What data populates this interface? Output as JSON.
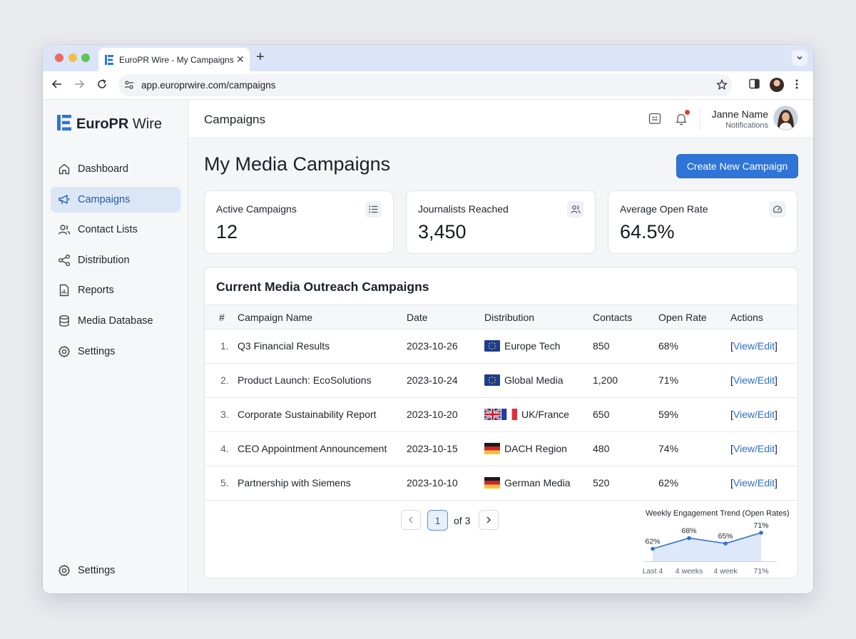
{
  "browser": {
    "tab_title": "EuroPR Wire - My Campaigns",
    "url": "app.europrwire.com/campaigns"
  },
  "brand": {
    "name_bold": "EuroPR",
    "name_light": " Wire",
    "accent": "#2f74d8"
  },
  "sidebar": {
    "items": [
      {
        "label": "Dashboard",
        "icon": "home-icon"
      },
      {
        "label": "Campaigns",
        "icon": "megaphone-icon",
        "active": true
      },
      {
        "label": "Contact Lists",
        "icon": "users-icon"
      },
      {
        "label": "Distribution",
        "icon": "share-icon"
      },
      {
        "label": "Reports",
        "icon": "report-icon"
      },
      {
        "label": "Media Database",
        "icon": "database-icon"
      },
      {
        "label": "Settings",
        "icon": "gear-icon"
      }
    ],
    "bottom_item": {
      "label": "Settings",
      "icon": "gear-icon"
    }
  },
  "header": {
    "title": "Campaigns",
    "user_name": "Janne Name",
    "user_sub": "Notifications"
  },
  "page": {
    "title": "My Media Campaigns",
    "cta_label": "Create New Campaign"
  },
  "stats": [
    {
      "label": "Active Campaigns",
      "value": "12",
      "icon": "list-icon"
    },
    {
      "label": "Journalists Reached",
      "value": "3,450",
      "icon": "users-icon"
    },
    {
      "label": "Average Open Rate",
      "value": "64.5%",
      "icon": "gauge-icon"
    }
  ],
  "table": {
    "title": "Current Media Outreach Campaigns",
    "headers": [
      "#",
      "Campaign Name",
      "Date",
      "Distribution",
      "Contacts",
      "Open Rate",
      "Actions"
    ],
    "rows": [
      {
        "num": "1.",
        "name": "Q3 Financial Results",
        "date": "2023-10-26",
        "flags": [
          "eu"
        ],
        "distribution": "Europe Tech",
        "contacts": "850",
        "open_rate": "68%",
        "action": "View/Edit"
      },
      {
        "num": "2.",
        "name": "Product Launch: EcoSolutions",
        "date": "2023-10-24",
        "flags": [
          "eu"
        ],
        "distribution": "Global Media",
        "contacts": "1,200",
        "open_rate": "71%",
        "action": "View/Edit"
      },
      {
        "num": "3.",
        "name": "Corporate Sustainability Report",
        "date": "2023-10-20",
        "flags": [
          "uk",
          "fr"
        ],
        "distribution": "UK/France",
        "contacts": "650",
        "open_rate": "59%",
        "action": "View/Edit"
      },
      {
        "num": "4.",
        "name": "CEO Appointment Announcement",
        "date": "2023-10-15",
        "flags": [
          "de"
        ],
        "distribution": "DACH Region",
        "contacts": "480",
        "open_rate": "74%",
        "action": "View/Edit"
      },
      {
        "num": "5.",
        "name": "Partnership with Siemens",
        "date": "2023-10-10",
        "flags": [
          "de"
        ],
        "distribution": "German Media",
        "contacts": "520",
        "open_rate": "62%",
        "action": "View/Edit"
      }
    ]
  },
  "pagination": {
    "current": "1",
    "total_label": "of 3"
  },
  "trend": {
    "title": "Weekly Engagement Trend (Open Rates)",
    "points": [
      {
        "label": "Last 4",
        "value": 62,
        "value_label": "62%"
      },
      {
        "label": "4 weeks",
        "value": 68,
        "value_label": "68%"
      },
      {
        "label": "4 week",
        "value": 65,
        "value_label": "65%"
      },
      {
        "label": "71%",
        "value": 71,
        "value_label": "71%"
      }
    ]
  }
}
